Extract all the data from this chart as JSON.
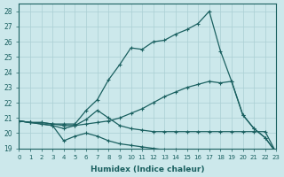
{
  "xlabel": "Humidex (Indice chaleur)",
  "bg_color": "#cce8eb",
  "line_color": "#1a6060",
  "grid_color": "#aacfd4",
  "xlim": [
    0,
    23
  ],
  "ylim": [
    19.0,
    28.5
  ],
  "yticks": [
    19,
    20,
    21,
    22,
    23,
    24,
    25,
    26,
    27,
    28
  ],
  "xticks": [
    0,
    1,
    2,
    3,
    4,
    5,
    6,
    7,
    8,
    9,
    10,
    11,
    12,
    13,
    14,
    15,
    16,
    17,
    18,
    19,
    20,
    21,
    22,
    23
  ],
  "line1_x": [
    0,
    1,
    2,
    3,
    4,
    5,
    6,
    7,
    8,
    9,
    10,
    11,
    12,
    13,
    14,
    15,
    16,
    17,
    18,
    19,
    20,
    21,
    22,
    23
  ],
  "line1_y": [
    20.8,
    20.7,
    20.7,
    20.6,
    20.6,
    20.6,
    21.5,
    22.2,
    23.5,
    24.5,
    25.6,
    25.5,
    26.0,
    26.1,
    26.5,
    26.8,
    27.2,
    28.0,
    25.4,
    23.4,
    21.2,
    20.3,
    19.7,
    18.7
  ],
  "line2_x": [
    0,
    1,
    2,
    3,
    4,
    5,
    6,
    7,
    8,
    9,
    10,
    11,
    12,
    13,
    14,
    15,
    16,
    17,
    18,
    19,
    20,
    21,
    22,
    23
  ],
  "line2_y": [
    20.8,
    20.7,
    20.7,
    20.6,
    20.5,
    20.5,
    20.6,
    20.7,
    20.8,
    21.0,
    21.3,
    21.6,
    22.0,
    22.4,
    22.7,
    23.0,
    23.2,
    23.4,
    23.3,
    23.4,
    21.2,
    20.3,
    19.7,
    18.7
  ],
  "line3_x": [
    0,
    1,
    2,
    3,
    4,
    5,
    6,
    7,
    8,
    9,
    10,
    11,
    12,
    13,
    14,
    15,
    16,
    17,
    18,
    19,
    20,
    21,
    22,
    23
  ],
  "line3_y": [
    20.8,
    20.7,
    20.6,
    20.5,
    20.3,
    20.5,
    20.9,
    21.5,
    21.0,
    20.5,
    20.3,
    20.2,
    20.1,
    20.1,
    20.1,
    20.1,
    20.1,
    20.1,
    20.1,
    20.1,
    20.1,
    20.1,
    20.1,
    18.7
  ],
  "line4_x": [
    0,
    1,
    2,
    3,
    4,
    5,
    6,
    7,
    8,
    9,
    10,
    11,
    12,
    13,
    14,
    15,
    16,
    17,
    18,
    19,
    20,
    21,
    22,
    23
  ],
  "line4_y": [
    20.8,
    20.7,
    20.6,
    20.5,
    19.5,
    19.8,
    20.0,
    19.8,
    19.5,
    19.3,
    19.2,
    19.1,
    19.0,
    18.9,
    18.9,
    18.8,
    18.8,
    18.7,
    18.7,
    18.6,
    18.6,
    18.6,
    18.6,
    18.7
  ]
}
